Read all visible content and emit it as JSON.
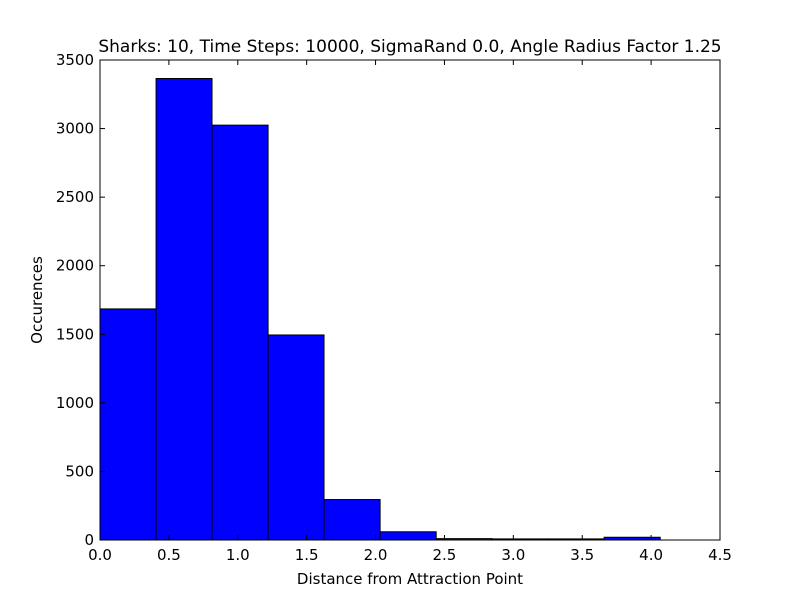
{
  "chart_data": {
    "type": "bar",
    "title": "Sharks: 10, Time Steps: 10000, SigmaRand 0.0, Angle Radius Factor 1.25",
    "xlabel": "Distance from Attraction Point",
    "ylabel": "Occurences",
    "xlim": [
      0.0,
      4.5
    ],
    "ylim": [
      0,
      3500
    ],
    "x_ticks": [
      "0.0",
      "0.5",
      "1.0",
      "1.5",
      "2.0",
      "2.5",
      "3.0",
      "3.5",
      "4.0",
      "4.5"
    ],
    "y_ticks": [
      "0",
      "500",
      "1000",
      "1500",
      "2000",
      "2500",
      "3000",
      "3500"
    ],
    "bin_edges": [
      0.0,
      0.407,
      0.813,
      1.22,
      1.626,
      2.033,
      2.44,
      2.846,
      3.253,
      3.659,
      4.066
    ],
    "values": [
      1685,
      3365,
      3025,
      1495,
      295,
      60,
      10,
      8,
      8,
      20
    ],
    "bar_color": "#0000ff",
    "edge_color": "#000000",
    "grid": false,
    "legend": "none"
  }
}
